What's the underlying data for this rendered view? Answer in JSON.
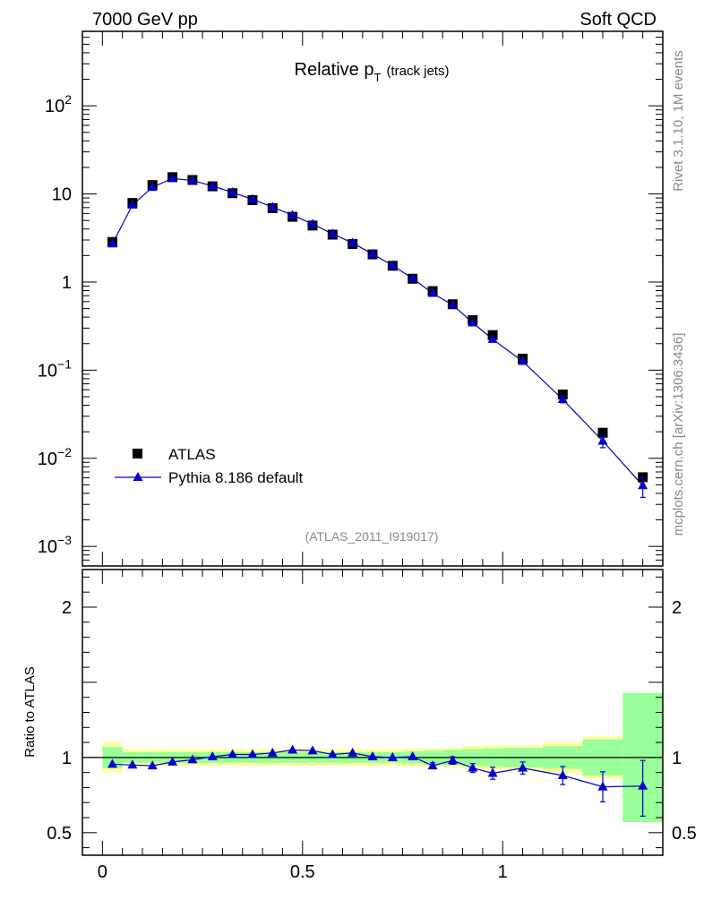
{
  "header": {
    "left": "7000 GeV pp",
    "right": "Soft QCD"
  },
  "title": {
    "main": "Relative p",
    "sub": "T",
    "suffix": "(track jets)"
  },
  "watermark": "(ATLAS_2011_I919017)",
  "side_labels": {
    "top": "Rivet 3.1.10,  1M events",
    "bottom": "mcplots.cern.ch [arXiv:1306.3436]"
  },
  "colors": {
    "data": "#000000",
    "mc": "#0000cc",
    "band_inner": "#99ff99",
    "band_outer": "#ffff99"
  },
  "chart_data": [
    {
      "type": "scatter",
      "yscale": "log",
      "xlim": [
        -0.05,
        1.4
      ],
      "ylim": [
        0.0006,
        700
      ],
      "ticks_y": [
        {
          "value": 0.001,
          "label": "10",
          "exp": "−3"
        },
        {
          "value": 0.01,
          "label": "10",
          "exp": "−2"
        },
        {
          "value": 0.1,
          "label": "10",
          "exp": "−1"
        },
        {
          "value": 1,
          "label": "1",
          "exp": ""
        },
        {
          "value": 10,
          "label": "10",
          "exp": ""
        },
        {
          "value": 100,
          "label": "10",
          "exp": "2"
        }
      ],
      "legend": {
        "placement": "bottom-left",
        "entries": [
          "ATLAS",
          "Pythia 8.186 default"
        ]
      },
      "x": [
        0.025,
        0.075,
        0.125,
        0.175,
        0.225,
        0.275,
        0.325,
        0.375,
        0.425,
        0.475,
        0.525,
        0.575,
        0.625,
        0.675,
        0.725,
        0.775,
        0.825,
        0.875,
        0.925,
        0.975,
        1.05,
        1.15,
        1.25,
        1.35
      ],
      "series": [
        {
          "name": "ATLAS",
          "marker": "square",
          "values": [
            2.85,
            7.9,
            12.6,
            15.5,
            14.4,
            12.2,
            10.2,
            8.5,
            6.9,
            5.5,
            4.38,
            3.45,
            2.7,
            2.06,
            1.53,
            1.09,
            0.79,
            0.56,
            0.37,
            0.25,
            0.135,
            0.053,
            0.0195,
            0.0061
          ]
        },
        {
          "name": "Pythia 8.186 default",
          "marker": "triangle",
          "values": [
            2.72,
            7.5,
            11.9,
            15.0,
            14.2,
            12.3,
            10.4,
            8.7,
            7.08,
            5.75,
            4.55,
            3.52,
            2.78,
            2.08,
            1.54,
            1.1,
            0.745,
            0.55,
            0.345,
            0.224,
            0.126,
            0.0466,
            0.0157,
            0.0049
          ],
          "err_low": [
            0,
            0,
            0,
            0,
            0,
            0,
            0,
            0,
            0,
            0,
            0,
            0,
            0,
            0,
            0,
            0,
            0,
            0,
            0,
            0,
            0,
            0.004,
            0.0025,
            0.0013
          ],
          "err_high": [
            0,
            0,
            0,
            0,
            0,
            0,
            0,
            0,
            0,
            0,
            0,
            0,
            0,
            0,
            0,
            0,
            0,
            0,
            0,
            0,
            0,
            0.004,
            0.0025,
            0.0012
          ]
        }
      ]
    },
    {
      "type": "scatter",
      "ylabel": "Ratio to ATLAS",
      "xlim": [
        -0.05,
        1.4
      ],
      "ylim": [
        0.35,
        2.25
      ],
      "ticks_x": [
        {
          "value": 0,
          "label": "0"
        },
        {
          "value": 0.5,
          "label": "0.5"
        },
        {
          "value": 1,
          "label": "1"
        }
      ],
      "ticks_y": [
        {
          "value": 0.5,
          "label": "0.5"
        },
        {
          "value": 1,
          "label": "1"
        },
        {
          "value": 2,
          "label": "2"
        }
      ],
      "bins": [
        [
          0.0,
          0.05
        ],
        [
          0.05,
          0.1
        ],
        [
          0.1,
          0.15
        ],
        [
          0.15,
          0.2
        ],
        [
          0.2,
          0.25
        ],
        [
          0.25,
          0.3
        ],
        [
          0.3,
          0.35
        ],
        [
          0.35,
          0.4
        ],
        [
          0.4,
          0.45
        ],
        [
          0.45,
          0.5
        ],
        [
          0.5,
          0.55
        ],
        [
          0.55,
          0.6
        ],
        [
          0.6,
          0.65
        ],
        [
          0.65,
          0.7
        ],
        [
          0.7,
          0.75
        ],
        [
          0.75,
          0.8
        ],
        [
          0.8,
          0.85
        ],
        [
          0.85,
          0.9
        ],
        [
          0.9,
          0.95
        ],
        [
          0.95,
          1.0
        ],
        [
          1.0,
          1.1
        ],
        [
          1.1,
          1.2
        ],
        [
          1.2,
          1.3
        ],
        [
          1.3,
          1.4
        ]
      ],
      "band_inner": [
        0.07,
        0.035,
        0.035,
        0.035,
        0.035,
        0.035,
        0.035,
        0.035,
        0.035,
        0.035,
        0.035,
        0.035,
        0.035,
        0.035,
        0.035,
        0.04,
        0.045,
        0.05,
        0.055,
        0.06,
        0.065,
        0.075,
        0.12,
        0.43
      ],
      "band_outer": [
        0.1,
        0.055,
        0.055,
        0.055,
        0.055,
        0.055,
        0.055,
        0.055,
        0.055,
        0.055,
        0.055,
        0.055,
        0.055,
        0.055,
        0.055,
        0.06,
        0.06,
        0.065,
        0.075,
        0.08,
        0.08,
        0.1,
        0.14,
        0.42
      ],
      "x": [
        0.025,
        0.075,
        0.125,
        0.175,
        0.225,
        0.275,
        0.325,
        0.375,
        0.425,
        0.475,
        0.525,
        0.575,
        0.625,
        0.675,
        0.725,
        0.775,
        0.825,
        0.875,
        0.925,
        0.975,
        1.05,
        1.15,
        1.25,
        1.35
      ],
      "series": [
        {
          "name": "Pythia 8.186 default",
          "values": [
            0.955,
            0.95,
            0.945,
            0.97,
            0.985,
            1.005,
            1.02,
            1.02,
            1.03,
            1.05,
            1.045,
            1.02,
            1.03,
            1.005,
            1.0,
            1.005,
            0.945,
            0.98,
            0.93,
            0.895,
            0.93,
            0.88,
            0.805,
            0.81
          ],
          "err_low": [
            0,
            0,
            0,
            0,
            0,
            0,
            0,
            0,
            0,
            0,
            0,
            0,
            0,
            0,
            0,
            0,
            0.02,
            0.025,
            0.03,
            0.04,
            0.04,
            0.06,
            0.1,
            0.2
          ],
          "err_high": [
            0,
            0,
            0,
            0,
            0,
            0,
            0,
            0,
            0,
            0,
            0,
            0,
            0,
            0,
            0,
            0,
            0.02,
            0.025,
            0.03,
            0.04,
            0.04,
            0.06,
            0.1,
            0.17
          ]
        }
      ]
    }
  ]
}
